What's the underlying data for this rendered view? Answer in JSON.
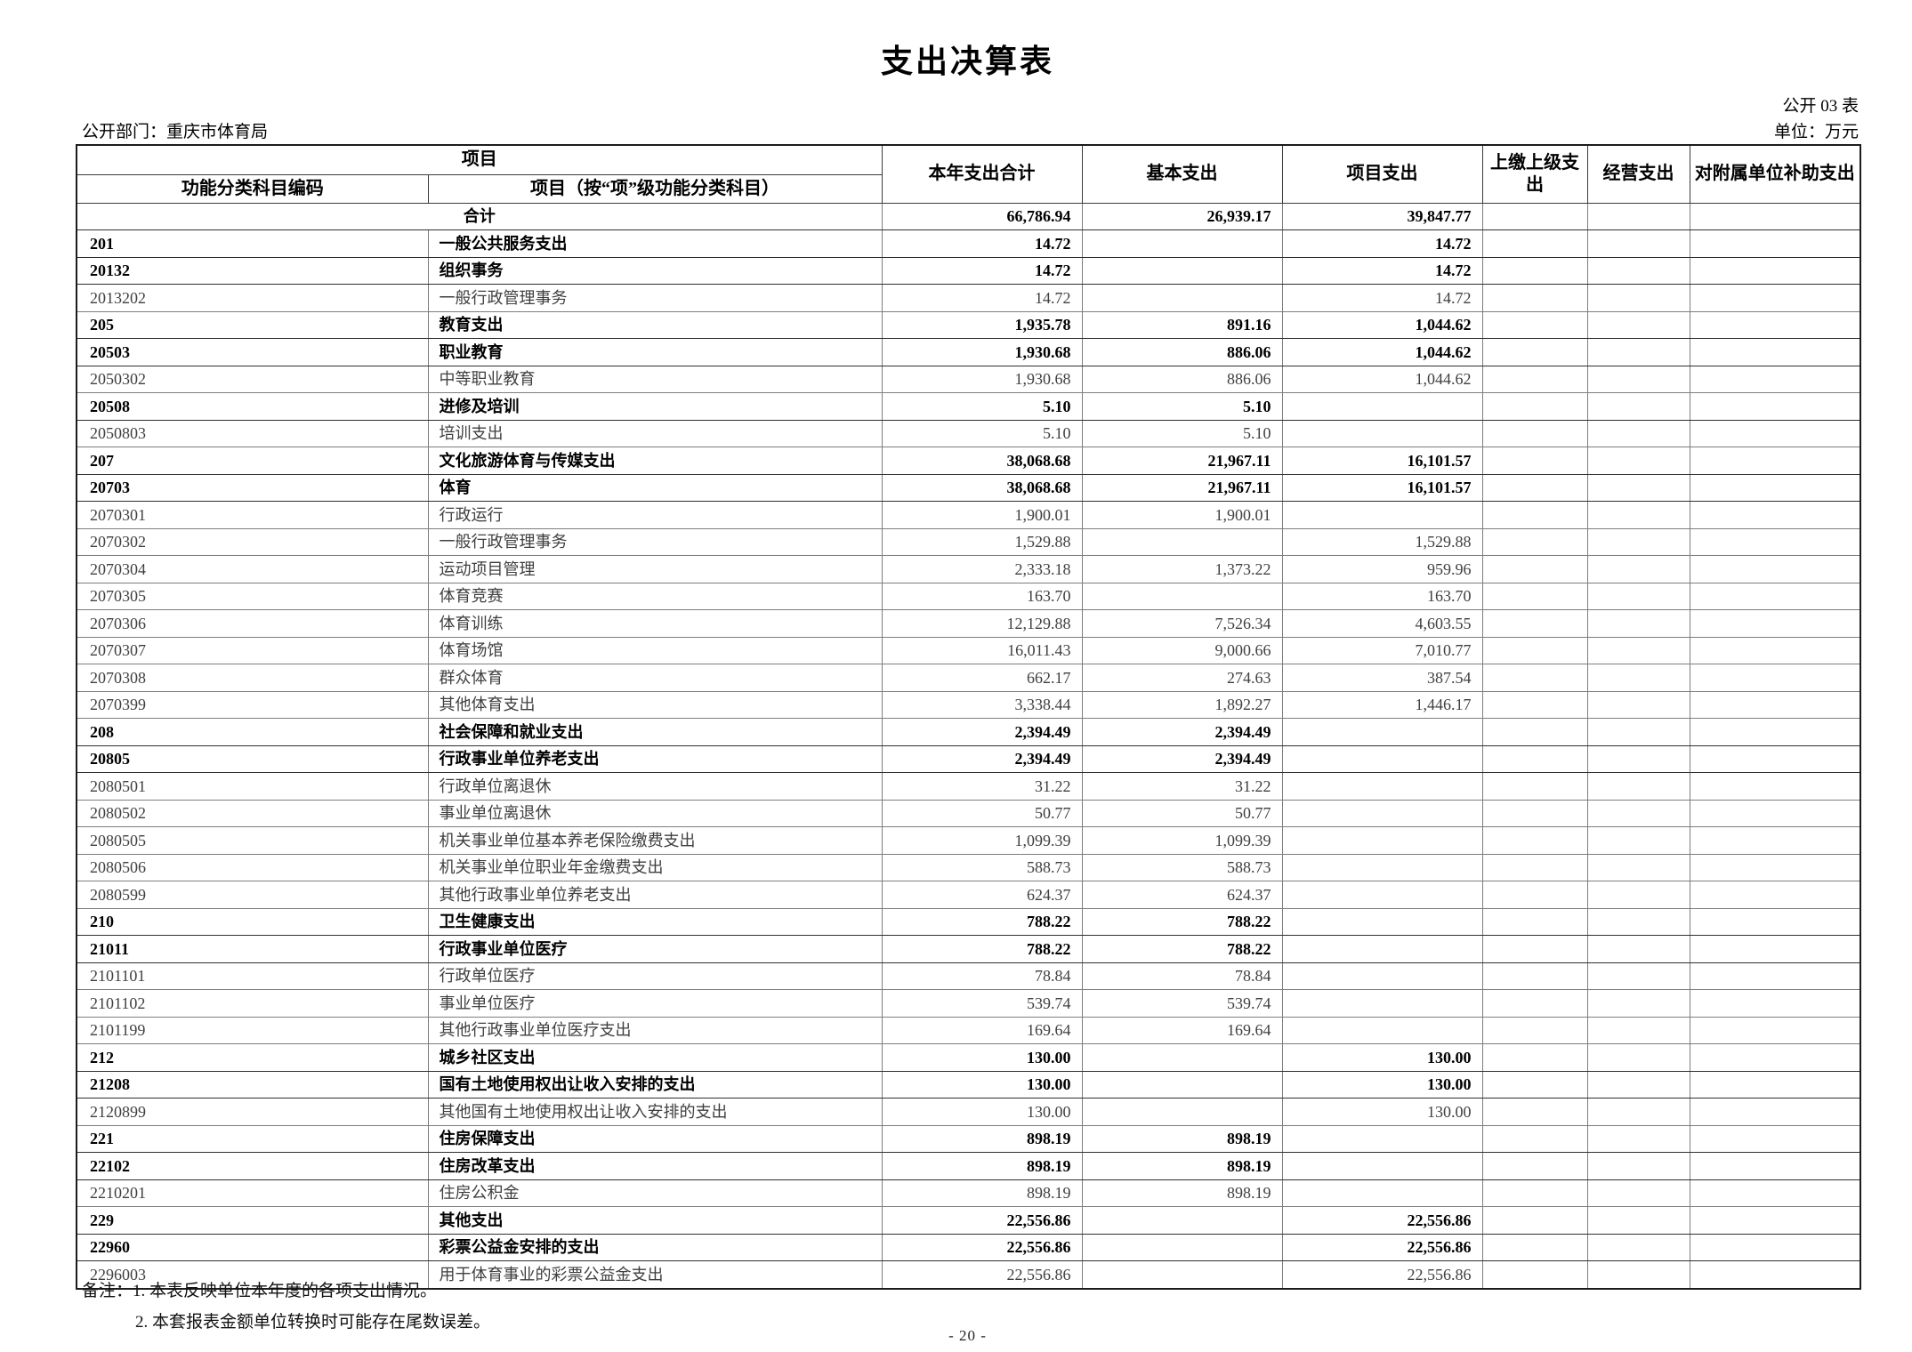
{
  "page": {
    "title": "支出决算表",
    "form_no": "公开 03 表",
    "unit": "单位：万元",
    "department": "公开部门：重庆市体育局",
    "notes": {
      "line1": "备注：1. 本表反映单位本年度的各项支出情况。",
      "line2": "2. 本套报表金额单位转换时可能存在尾数误差。"
    },
    "page_number": "- 20 -"
  },
  "table": {
    "header": {
      "group_project": "项目",
      "col_code": "功能分类科目编码",
      "col_item": "项目（按“项”级功能分类科目）",
      "col_total": "本年支出合计",
      "col_basic": "基本支出",
      "col_project": "项目支出",
      "col_upper": "上缴上级支出",
      "col_operating": "经营支出",
      "col_subsidy": "对附属单位补助支出"
    },
    "rows": [
      {
        "level": "sum",
        "code": "",
        "name": "合计",
        "total": "66,786.94",
        "basic": "26,939.17",
        "project": "39,847.77",
        "upper": "",
        "operating": "",
        "subsidy": ""
      },
      {
        "level": "bold",
        "code": "201",
        "name": "一般公共服务支出",
        "total": "14.72",
        "basic": "",
        "project": "14.72",
        "upper": "",
        "operating": "",
        "subsidy": ""
      },
      {
        "level": "bold",
        "code": "20132",
        "name": "组织事务",
        "total": "14.72",
        "basic": "",
        "project": "14.72",
        "upper": "",
        "operating": "",
        "subsidy": ""
      },
      {
        "level": "leaf",
        "code": "2013202",
        "name": "一般行政管理事务",
        "total": "14.72",
        "basic": "",
        "project": "14.72",
        "upper": "",
        "operating": "",
        "subsidy": ""
      },
      {
        "level": "bold",
        "code": "205",
        "name": "教育支出",
        "total": "1,935.78",
        "basic": "891.16",
        "project": "1,044.62",
        "upper": "",
        "operating": "",
        "subsidy": ""
      },
      {
        "level": "bold",
        "code": "20503",
        "name": "职业教育",
        "total": "1,930.68",
        "basic": "886.06",
        "project": "1,044.62",
        "upper": "",
        "operating": "",
        "subsidy": ""
      },
      {
        "level": "leaf",
        "code": "2050302",
        "name": "中等职业教育",
        "total": "1,930.68",
        "basic": "886.06",
        "project": "1,044.62",
        "upper": "",
        "operating": "",
        "subsidy": ""
      },
      {
        "level": "bold",
        "code": "20508",
        "name": "进修及培训",
        "total": "5.10",
        "basic": "5.10",
        "project": "",
        "upper": "",
        "operating": "",
        "subsidy": ""
      },
      {
        "level": "leaf",
        "code": "2050803",
        "name": "培训支出",
        "total": "5.10",
        "basic": "5.10",
        "project": "",
        "upper": "",
        "operating": "",
        "subsidy": ""
      },
      {
        "level": "bold",
        "code": "207",
        "name": "文化旅游体育与传媒支出",
        "total": "38,068.68",
        "basic": "21,967.11",
        "project": "16,101.57",
        "upper": "",
        "operating": "",
        "subsidy": ""
      },
      {
        "level": "bold",
        "code": "20703",
        "name": "体育",
        "total": "38,068.68",
        "basic": "21,967.11",
        "project": "16,101.57",
        "upper": "",
        "operating": "",
        "subsidy": ""
      },
      {
        "level": "leaf",
        "code": "2070301",
        "name": "行政运行",
        "total": "1,900.01",
        "basic": "1,900.01",
        "project": "",
        "upper": "",
        "operating": "",
        "subsidy": ""
      },
      {
        "level": "leaf",
        "code": "2070302",
        "name": "一般行政管理事务",
        "total": "1,529.88",
        "basic": "",
        "project": "1,529.88",
        "upper": "",
        "operating": "",
        "subsidy": ""
      },
      {
        "level": "leaf",
        "code": "2070304",
        "name": "运动项目管理",
        "total": "2,333.18",
        "basic": "1,373.22",
        "project": "959.96",
        "upper": "",
        "operating": "",
        "subsidy": ""
      },
      {
        "level": "leaf",
        "code": "2070305",
        "name": "体育竞赛",
        "total": "163.70",
        "basic": "",
        "project": "163.70",
        "upper": "",
        "operating": "",
        "subsidy": ""
      },
      {
        "level": "leaf",
        "code": "2070306",
        "name": "体育训练",
        "total": "12,129.88",
        "basic": "7,526.34",
        "project": "4,603.55",
        "upper": "",
        "operating": "",
        "subsidy": ""
      },
      {
        "level": "leaf",
        "code": "2070307",
        "name": "体育场馆",
        "total": "16,011.43",
        "basic": "9,000.66",
        "project": "7,010.77",
        "upper": "",
        "operating": "",
        "subsidy": ""
      },
      {
        "level": "leaf",
        "code": "2070308",
        "name": "群众体育",
        "total": "662.17",
        "basic": "274.63",
        "project": "387.54",
        "upper": "",
        "operating": "",
        "subsidy": ""
      },
      {
        "level": "leaf",
        "code": "2070399",
        "name": "其他体育支出",
        "total": "3,338.44",
        "basic": "1,892.27",
        "project": "1,446.17",
        "upper": "",
        "operating": "",
        "subsidy": ""
      },
      {
        "level": "bold",
        "code": "208",
        "name": "社会保障和就业支出",
        "total": "2,394.49",
        "basic": "2,394.49",
        "project": "",
        "upper": "",
        "operating": "",
        "subsidy": ""
      },
      {
        "level": "bold",
        "code": "20805",
        "name": "行政事业单位养老支出",
        "total": "2,394.49",
        "basic": "2,394.49",
        "project": "",
        "upper": "",
        "operating": "",
        "subsidy": ""
      },
      {
        "level": "leaf",
        "code": "2080501",
        "name": "行政单位离退休",
        "total": "31.22",
        "basic": "31.22",
        "project": "",
        "upper": "",
        "operating": "",
        "subsidy": ""
      },
      {
        "level": "leaf",
        "code": "2080502",
        "name": "事业单位离退休",
        "total": "50.77",
        "basic": "50.77",
        "project": "",
        "upper": "",
        "operating": "",
        "subsidy": ""
      },
      {
        "level": "leaf",
        "code": "2080505",
        "name": "机关事业单位基本养老保险缴费支出",
        "total": "1,099.39",
        "basic": "1,099.39",
        "project": "",
        "upper": "",
        "operating": "",
        "subsidy": ""
      },
      {
        "level": "leaf",
        "code": "2080506",
        "name": "机关事业单位职业年金缴费支出",
        "total": "588.73",
        "basic": "588.73",
        "project": "",
        "upper": "",
        "operating": "",
        "subsidy": ""
      },
      {
        "level": "leaf",
        "code": "2080599",
        "name": "其他行政事业单位养老支出",
        "total": "624.37",
        "basic": "624.37",
        "project": "",
        "upper": "",
        "operating": "",
        "subsidy": ""
      },
      {
        "level": "bold",
        "code": "210",
        "name": "卫生健康支出",
        "total": "788.22",
        "basic": "788.22",
        "project": "",
        "upper": "",
        "operating": "",
        "subsidy": ""
      },
      {
        "level": "bold",
        "code": "21011",
        "name": "行政事业单位医疗",
        "total": "788.22",
        "basic": "788.22",
        "project": "",
        "upper": "",
        "operating": "",
        "subsidy": ""
      },
      {
        "level": "leaf",
        "code": "2101101",
        "name": "行政单位医疗",
        "total": "78.84",
        "basic": "78.84",
        "project": "",
        "upper": "",
        "operating": "",
        "subsidy": ""
      },
      {
        "level": "leaf",
        "code": "2101102",
        "name": "事业单位医疗",
        "total": "539.74",
        "basic": "539.74",
        "project": "",
        "upper": "",
        "operating": "",
        "subsidy": ""
      },
      {
        "level": "leaf",
        "code": "2101199",
        "name": "其他行政事业单位医疗支出",
        "total": "169.64",
        "basic": "169.64",
        "project": "",
        "upper": "",
        "operating": "",
        "subsidy": ""
      },
      {
        "level": "bold",
        "code": "212",
        "name": "城乡社区支出",
        "total": "130.00",
        "basic": "",
        "project": "130.00",
        "upper": "",
        "operating": "",
        "subsidy": ""
      },
      {
        "level": "bold",
        "code": "21208",
        "name": "国有土地使用权出让收入安排的支出",
        "total": "130.00",
        "basic": "",
        "project": "130.00",
        "upper": "",
        "operating": "",
        "subsidy": ""
      },
      {
        "level": "leaf",
        "code": "2120899",
        "name": "其他国有土地使用权出让收入安排的支出",
        "total": "130.00",
        "basic": "",
        "project": "130.00",
        "upper": "",
        "operating": "",
        "subsidy": ""
      },
      {
        "level": "bold",
        "code": "221",
        "name": "住房保障支出",
        "total": "898.19",
        "basic": "898.19",
        "project": "",
        "upper": "",
        "operating": "",
        "subsidy": ""
      },
      {
        "level": "bold",
        "code": "22102",
        "name": "住房改革支出",
        "total": "898.19",
        "basic": "898.19",
        "project": "",
        "upper": "",
        "operating": "",
        "subsidy": ""
      },
      {
        "level": "leaf",
        "code": "2210201",
        "name": "住房公积金",
        "total": "898.19",
        "basic": "898.19",
        "project": "",
        "upper": "",
        "operating": "",
        "subsidy": ""
      },
      {
        "level": "bold",
        "code": "229",
        "name": "其他支出",
        "total": "22,556.86",
        "basic": "",
        "project": "22,556.86",
        "upper": "",
        "operating": "",
        "subsidy": ""
      },
      {
        "level": "bold",
        "code": "22960",
        "name": "彩票公益金安排的支出",
        "total": "22,556.86",
        "basic": "",
        "project": "22,556.86",
        "upper": "",
        "operating": "",
        "subsidy": ""
      },
      {
        "level": "leaf",
        "code": "2296003",
        "name": "用于体育事业的彩票公益金支出",
        "total": "22,556.86",
        "basic": "",
        "project": "22,556.86",
        "upper": "",
        "operating": "",
        "subsidy": ""
      }
    ]
  }
}
